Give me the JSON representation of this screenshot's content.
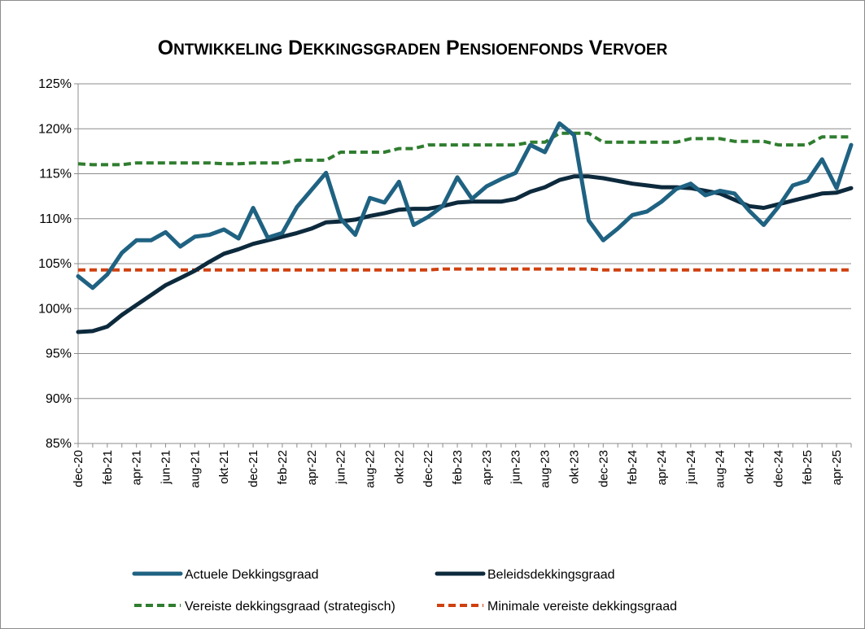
{
  "chart_data": {
    "type": "line",
    "title": "Ontwikkeling Dekkingsgraden Pensioenfonds Vervoer",
    "title_parts": [
      {
        "cap": "O",
        "rest": "NTWIKKELING"
      },
      {
        "cap": "D",
        "rest": "EKKINGSGRADEN"
      },
      {
        "cap": "P",
        "rest": "ENSIOENFONDS"
      },
      {
        "cap": "V",
        "rest": "ERVOER"
      }
    ],
    "xlabel": "",
    "ylabel": "",
    "ylim": [
      85,
      125
    ],
    "y_ticks": [
      "85%",
      "90%",
      "95%",
      "100%",
      "105%",
      "110%",
      "115%",
      "120%",
      "125%"
    ],
    "y_tick_values": [
      85,
      90,
      95,
      100,
      105,
      110,
      115,
      120,
      125
    ],
    "x": [
      "dec-20",
      "jan-21",
      "feb-21",
      "mrt-21",
      "apr-21",
      "mei-21",
      "jun-21",
      "jul-21",
      "aug-21",
      "sep-21",
      "okt-21",
      "nov-21",
      "dec-21",
      "jan-22",
      "feb-22",
      "mrt-22",
      "apr-22",
      "mei-22",
      "jun-22",
      "jul-22",
      "aug-22",
      "sep-22",
      "okt-22",
      "nov-22",
      "dec-22",
      "jan-23",
      "feb-23",
      "mrt-23",
      "apr-23",
      "mei-23",
      "jun-23",
      "jul-23",
      "aug-23",
      "sep-23",
      "okt-23",
      "nov-23",
      "dec-23",
      "jan-24",
      "feb-24",
      "mrt-24",
      "apr-24",
      "mei-24",
      "jun-24",
      "jul-24",
      "aug-24",
      "sep-24",
      "okt-24",
      "nov-24",
      "dec-24",
      "jan-25",
      "feb-25",
      "mrt-25",
      "apr-25",
      "mei-25"
    ],
    "x_tick_labels": [
      "dec-20",
      "feb-21",
      "apr-21",
      "jun-21",
      "aug-21",
      "okt-21",
      "dec-21",
      "feb-22",
      "apr-22",
      "jun-22",
      "aug-22",
      "okt-22",
      "dec-22",
      "feb-23",
      "apr-23",
      "jun-23",
      "aug-23",
      "okt-23",
      "dec-23",
      "feb-24",
      "apr-24",
      "jun-24",
      "aug-24",
      "okt-24",
      "dec-24",
      "feb-25",
      "apr-25"
    ],
    "grid": "horizontal",
    "legend_position": "bottom",
    "series": [
      {
        "name": "Actuele Dekkingsgraad",
        "color": "#1f6282",
        "style": "solid",
        "values": [
          103.6,
          102.3,
          103.8,
          106.2,
          107.6,
          107.6,
          108.5,
          106.9,
          108.0,
          108.2,
          108.8,
          107.8,
          111.2,
          107.9,
          108.4,
          111.3,
          113.2,
          115.1,
          110.0,
          108.2,
          112.3,
          111.8,
          114.1,
          109.3,
          110.2,
          111.4,
          114.6,
          112.2,
          113.6,
          114.4,
          115.1,
          118.2,
          117.4,
          120.6,
          119.3,
          109.8,
          107.6,
          108.9,
          110.4,
          110.8,
          111.9,
          113.3,
          113.9,
          112.6,
          113.1,
          112.8,
          110.9,
          109.3,
          111.3,
          113.7,
          114.2,
          116.6,
          113.4,
          118.2
        ]
      },
      {
        "name": "Beleidsdekkingsgraad",
        "color": "#0d2a3d",
        "style": "solid",
        "values": [
          97.4,
          97.5,
          98.0,
          99.3,
          100.4,
          101.5,
          102.6,
          103.4,
          104.2,
          105.2,
          106.1,
          106.6,
          107.2,
          107.6,
          108.0,
          108.4,
          108.9,
          109.6,
          109.7,
          109.9,
          110.3,
          110.6,
          111.0,
          111.1,
          111.1,
          111.4,
          111.8,
          111.9,
          111.9,
          111.9,
          112.2,
          113.0,
          113.5,
          114.3,
          114.7,
          114.7,
          114.5,
          114.2,
          113.9,
          113.7,
          113.5,
          113.5,
          113.4,
          113.1,
          112.8,
          112.1,
          111.4,
          111.2,
          111.6,
          112.0,
          112.4,
          112.8,
          112.9,
          113.4
        ]
      },
      {
        "name": "Vereiste dekkingsgraad (strategisch)",
        "color": "#2f7d2f",
        "style": "dashed",
        "values": [
          116.1,
          116.0,
          116.0,
          116.0,
          116.2,
          116.2,
          116.2,
          116.2,
          116.2,
          116.2,
          116.1,
          116.1,
          116.2,
          116.2,
          116.2,
          116.5,
          116.5,
          116.5,
          117.4,
          117.4,
          117.4,
          117.4,
          117.8,
          117.8,
          118.2,
          118.2,
          118.2,
          118.2,
          118.2,
          118.2,
          118.2,
          118.5,
          118.5,
          119.5,
          119.5,
          119.5,
          118.5,
          118.5,
          118.5,
          118.5,
          118.5,
          118.5,
          118.9,
          118.9,
          118.9,
          118.6,
          118.6,
          118.6,
          118.2,
          118.2,
          118.2,
          119.1,
          119.1,
          119.1
        ]
      },
      {
        "name": "Minimale vereiste dekkingsgraad",
        "color": "#d0400f",
        "style": "dashed",
        "values": [
          104.3,
          104.3,
          104.3,
          104.3,
          104.3,
          104.3,
          104.3,
          104.3,
          104.3,
          104.3,
          104.3,
          104.3,
          104.3,
          104.3,
          104.3,
          104.3,
          104.3,
          104.3,
          104.3,
          104.3,
          104.3,
          104.3,
          104.3,
          104.3,
          104.3,
          104.4,
          104.4,
          104.4,
          104.4,
          104.4,
          104.4,
          104.4,
          104.4,
          104.4,
          104.4,
          104.4,
          104.3,
          104.3,
          104.3,
          104.3,
          104.3,
          104.3,
          104.3,
          104.3,
          104.3,
          104.3,
          104.3,
          104.3,
          104.3,
          104.3,
          104.3,
          104.3,
          104.3,
          104.3
        ]
      }
    ]
  }
}
